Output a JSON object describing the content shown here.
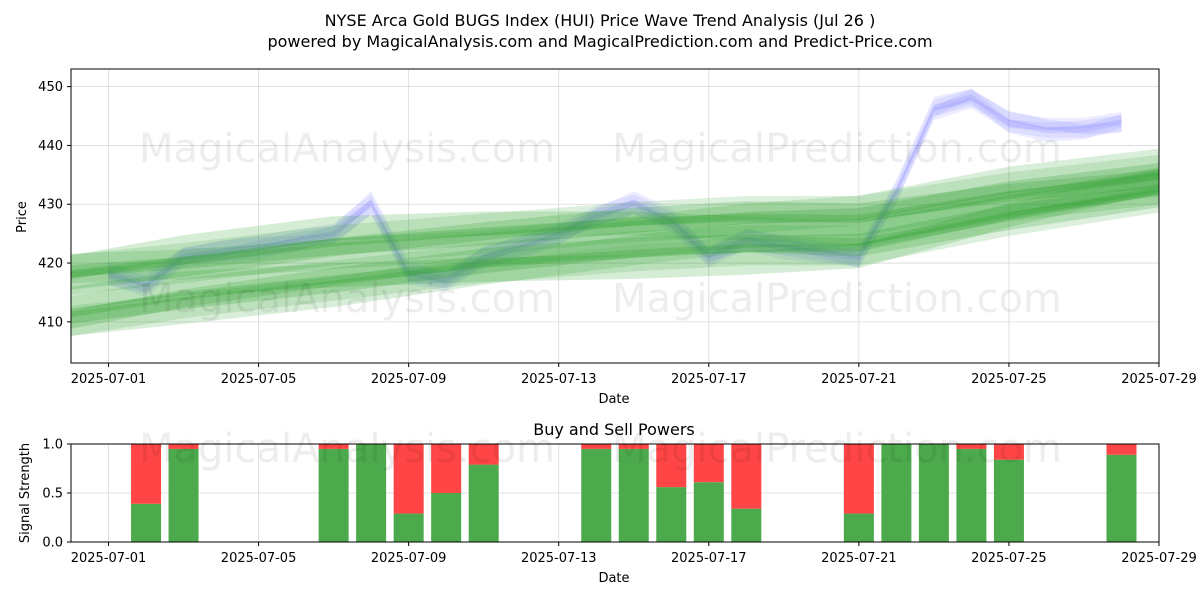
{
  "title_line1": "NYSE Arca Gold BUGS Index (HUI) Price Wave Trend Analysis (Jul 26 )",
  "title_line2": "powered by MagicalAnalysis.com and MagicalPrediction.com and Predict-Price.com",
  "watermarks": [
    "MagicalAnalysis.com",
    "MagicalPrediction.com"
  ],
  "colors": {
    "band_green": "#2ca02c",
    "band_blue": "#6f6fff",
    "buy": "#4caa4c",
    "sell": "#ff4545",
    "grid": "#d9d9d9"
  },
  "chart_data": [
    {
      "type": "area",
      "title": "",
      "xlabel": "Date",
      "ylabel": "Price",
      "xlim": [
        "2025-06-30",
        "2025-07-29"
      ],
      "ylim": [
        403,
        453
      ],
      "x_ticks": [
        "2025-07-01",
        "2025-07-05",
        "2025-07-09",
        "2025-07-13",
        "2025-07-17",
        "2025-07-21",
        "2025-07-25",
        "2025-07-29"
      ],
      "y_ticks": [
        410,
        420,
        430,
        440,
        450
      ],
      "grid": true,
      "series": [
        {
          "color": "#6f6fff",
          "x": [
            "2025-07-01",
            "2025-07-02",
            "2025-07-03",
            "2025-07-04",
            "2025-07-05",
            "2025-07-06",
            "2025-07-07",
            "2025-07-08",
            "2025-07-09",
            "2025-07-10",
            "2025-07-11",
            "2025-07-12",
            "2025-07-13",
            "2025-07-14",
            "2025-07-15",
            "2025-07-16",
            "2025-07-17",
            "2025-07-18",
            "2025-07-19",
            "2025-07-20",
            "2025-07-21",
            "2025-07-22",
            "2025-07-23",
            "2025-07-24",
            "2025-07-25",
            "2025-07-26",
            "2025-07-27",
            "2025-07-28"
          ],
          "values": [
            418,
            416,
            421,
            422,
            423,
            424,
            425,
            430,
            418,
            417,
            421,
            423,
            425,
            428,
            430,
            427,
            421,
            424,
            423,
            422,
            421,
            432,
            446,
            448,
            444,
            443,
            443,
            444
          ]
        },
        {
          "color": "#2ca02c",
          "x": [
            "2025-06-30",
            "2025-07-03",
            "2025-07-07",
            "2025-07-11",
            "2025-07-15",
            "2025-07-18",
            "2025-07-21",
            "2025-07-25",
            "2025-07-29"
          ],
          "values": [
            418,
            420,
            423,
            425,
            427,
            428,
            428,
            432,
            435
          ]
        },
        {
          "color": "#2ca02c",
          "x": [
            "2025-06-30",
            "2025-07-03",
            "2025-07-07",
            "2025-07-11",
            "2025-07-15",
            "2025-07-18",
            "2025-07-21",
            "2025-07-25",
            "2025-07-29"
          ],
          "values": [
            411,
            414,
            417,
            420,
            422,
            423,
            423,
            428,
            432
          ]
        }
      ]
    },
    {
      "type": "bar",
      "title": "Buy and Sell Powers",
      "xlabel": "Date",
      "ylabel": "Signal Strength",
      "xlim": [
        "2025-06-30",
        "2025-07-29"
      ],
      "ylim": [
        0,
        1
      ],
      "x_ticks": [
        "2025-07-01",
        "2025-07-05",
        "2025-07-09",
        "2025-07-13",
        "2025-07-17",
        "2025-07-21",
        "2025-07-25",
        "2025-07-29"
      ],
      "y_ticks": [
        "0.0",
        "0.5",
        "1.0"
      ],
      "grid": true,
      "categories": [
        "2025-07-02",
        "2025-07-03",
        "2025-07-07",
        "2025-07-08",
        "2025-07-09",
        "2025-07-10",
        "2025-07-11",
        "2025-07-14",
        "2025-07-15",
        "2025-07-16",
        "2025-07-17",
        "2025-07-18",
        "2025-07-21",
        "2025-07-22",
        "2025-07-23",
        "2025-07-24",
        "2025-07-25",
        "2025-07-28"
      ],
      "series": [
        {
          "color": "#4caa4c",
          "values": [
            0.39,
            0.95,
            0.95,
            1.0,
            0.29,
            0.5,
            0.79,
            0.95,
            0.95,
            0.56,
            0.61,
            0.34,
            0.29,
            1.0,
            1.0,
            0.95,
            0.84,
            0.89
          ]
        },
        {
          "color": "#ff4545",
          "values": [
            0.61,
            0.05,
            0.05,
            0.0,
            0.71,
            0.5,
            0.21,
            0.05,
            0.05,
            0.44,
            0.39,
            0.66,
            0.71,
            0.0,
            0.0,
            0.05,
            0.16,
            0.11
          ]
        }
      ]
    }
  ]
}
